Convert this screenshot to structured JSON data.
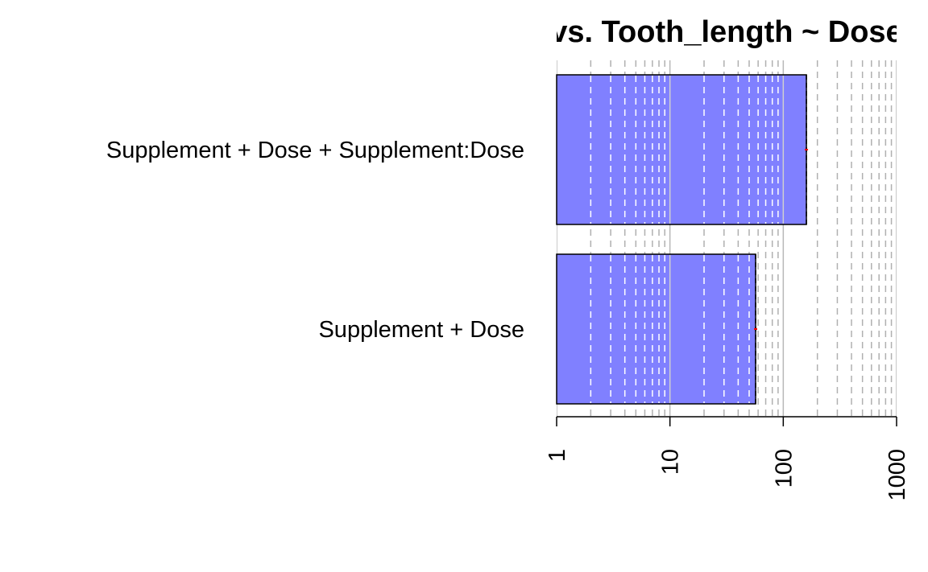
{
  "chart_data": {
    "type": "bar",
    "orientation": "horizontal",
    "title": "vs. Tooth_length ~ Dose",
    "categories": [
      "Supplement + Dose + Supplement:Dose",
      "Supplement + Dose"
    ],
    "values": [
      160,
      57
    ],
    "x_scale": "log10",
    "xlim": [
      1,
      1000
    ],
    "x_ticks": [
      "1",
      "10",
      "100",
      "1000"
    ],
    "xlabel": "",
    "ylabel": "",
    "grid": true,
    "bar_color": "#8080ff",
    "error_bar_color": "#ff0000"
  }
}
